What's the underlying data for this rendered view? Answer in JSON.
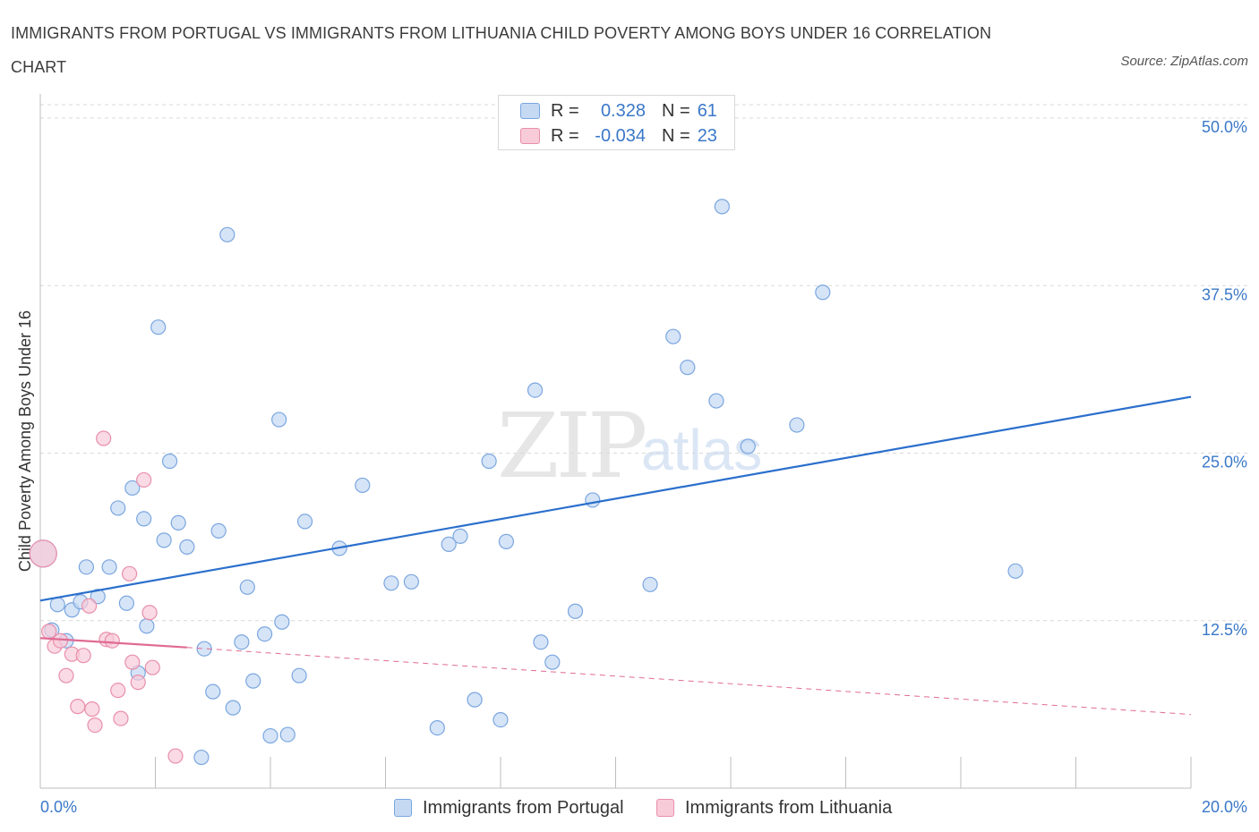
{
  "title": "IMMIGRANTS FROM PORTUGAL VS IMMIGRANTS FROM LITHUANIA CHILD POVERTY AMONG BOYS UNDER 16 CORRELATION CHART",
  "source": "Source: ZipAtlas.com",
  "watermark": {
    "zip": "ZIP",
    "atlas": "atlas"
  },
  "colors": {
    "blue_fill": "#c5d9f3",
    "blue_stroke": "#7aa6e0",
    "blue_line": "#2a6fcc",
    "pink_fill": "#f8cbd8",
    "pink_stroke": "#e98fab",
    "pink_line": "#e06a93",
    "axis_text": "#3a78c8",
    "grid": "#d9d9d9"
  },
  "legend": {
    "rows": [
      {
        "r_label": "R =",
        "r_value": "0.328",
        "n_label": "N =",
        "n_value": "61"
      },
      {
        "r_label": "R =",
        "r_value": "-0.034",
        "n_label": "N =",
        "n_value": "23"
      }
    ]
  },
  "bottom_legend": {
    "series1": "Immigrants from Portugal",
    "series2": "Immigrants from Lithuania"
  },
  "chart_data": {
    "type": "scatter",
    "title": "IMMIGRANTS FROM PORTUGAL VS IMMIGRANTS FROM LITHUANIA CHILD POVERTY AMONG BOYS UNDER 16 CORRELATION CHART",
    "xlabel": "",
    "ylabel": "Child Poverty Among Boys Under 16",
    "xlim": [
      0,
      20
    ],
    "ylim": [
      0,
      50
    ],
    "x_ticks": [
      0,
      2,
      4,
      6,
      8,
      10,
      12,
      14,
      16,
      18,
      20
    ],
    "x_tick_labels": {
      "first": "0.0%",
      "last": "20.0%"
    },
    "y_ticks": [
      12.5,
      25,
      37.5,
      50
    ],
    "y_tick_labels": [
      "12.5%",
      "25.0%",
      "37.5%",
      "50.0%"
    ],
    "legend_position": "top-center",
    "series": [
      {
        "name": "Immigrants from Portugal",
        "color": "#c5d9f3",
        "points": [
          [
            0.05,
            17.5
          ],
          [
            0.2,
            11.8
          ],
          [
            0.3,
            13.7
          ],
          [
            0.45,
            11.0
          ],
          [
            0.55,
            13.3
          ],
          [
            0.7,
            13.9
          ],
          [
            0.8,
            16.5
          ],
          [
            1.0,
            14.3
          ],
          [
            1.2,
            16.5
          ],
          [
            1.35,
            20.9
          ],
          [
            1.5,
            13.8
          ],
          [
            1.6,
            22.4
          ],
          [
            1.7,
            8.6
          ],
          [
            1.8,
            20.1
          ],
          [
            1.85,
            12.1
          ],
          [
            2.05,
            34.4
          ],
          [
            2.15,
            18.5
          ],
          [
            2.25,
            24.4
          ],
          [
            2.4,
            19.8
          ],
          [
            2.55,
            18.0
          ],
          [
            2.85,
            10.4
          ],
          [
            3.0,
            7.2
          ],
          [
            3.1,
            19.2
          ],
          [
            3.25,
            41.3
          ],
          [
            3.35,
            6.0
          ],
          [
            3.5,
            10.9
          ],
          [
            3.6,
            15.0
          ],
          [
            3.7,
            8.0
          ],
          [
            3.9,
            11.5
          ],
          [
            4.0,
            3.9
          ],
          [
            4.15,
            27.5
          ],
          [
            4.2,
            12.4
          ],
          [
            4.5,
            8.4
          ],
          [
            4.6,
            19.9
          ],
          [
            5.2,
            17.9
          ],
          [
            5.6,
            22.6
          ],
          [
            6.1,
            15.3
          ],
          [
            6.45,
            15.4
          ],
          [
            6.9,
            4.5
          ],
          [
            7.1,
            18.2
          ],
          [
            7.3,
            18.8
          ],
          [
            7.55,
            6.6
          ],
          [
            7.8,
            24.4
          ],
          [
            8.0,
            5.1
          ],
          [
            8.1,
            18.4
          ],
          [
            8.6,
            29.7
          ],
          [
            8.7,
            10.9
          ],
          [
            8.9,
            9.4
          ],
          [
            9.3,
            13.2
          ],
          [
            9.6,
            21.5
          ],
          [
            10.6,
            15.2
          ],
          [
            11.0,
            33.7
          ],
          [
            11.25,
            31.4
          ],
          [
            11.75,
            28.9
          ],
          [
            11.85,
            43.4
          ],
          [
            12.3,
            25.5
          ],
          [
            13.15,
            27.1
          ],
          [
            13.6,
            37.0
          ],
          [
            16.95,
            16.2
          ],
          [
            2.8,
            2.3
          ],
          [
            4.3,
            4.0
          ]
        ]
      },
      {
        "name": "Immigrants from Lithuania",
        "color": "#f8cbd8",
        "points": [
          [
            0.05,
            17.5
          ],
          [
            0.15,
            11.7
          ],
          [
            0.25,
            10.6
          ],
          [
            0.35,
            11.0
          ],
          [
            0.45,
            8.4
          ],
          [
            0.55,
            10.0
          ],
          [
            0.65,
            6.1
          ],
          [
            0.75,
            9.9
          ],
          [
            0.85,
            13.6
          ],
          [
            0.9,
            5.9
          ],
          [
            0.95,
            4.7
          ],
          [
            1.1,
            26.1
          ],
          [
            1.15,
            11.1
          ],
          [
            1.25,
            11.0
          ],
          [
            1.35,
            7.3
          ],
          [
            1.4,
            5.2
          ],
          [
            1.55,
            16.0
          ],
          [
            1.6,
            9.4
          ],
          [
            1.7,
            7.9
          ],
          [
            1.8,
            23.0
          ],
          [
            1.9,
            13.1
          ],
          [
            1.95,
            9.0
          ],
          [
            2.35,
            2.4
          ]
        ]
      }
    ],
    "trendlines": [
      {
        "series": "Immigrants from Portugal",
        "x": [
          0,
          20
        ],
        "y": [
          14.0,
          29.2
        ],
        "style": "solid"
      },
      {
        "series": "Immigrants from Lithuania",
        "x": [
          0,
          2.55
        ],
        "y": [
          11.2,
          10.5
        ],
        "style": "solid"
      },
      {
        "series": "Immigrants from Lithuania",
        "x": [
          2.55,
          20
        ],
        "y": [
          10.5,
          5.5
        ],
        "style": "dashed"
      }
    ]
  }
}
